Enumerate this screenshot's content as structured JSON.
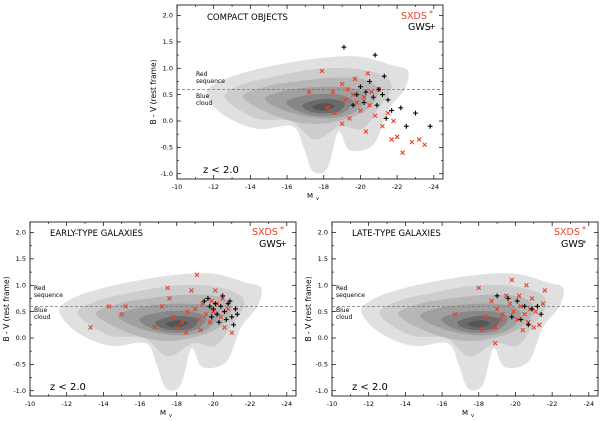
{
  "colors": {
    "sxds": "#e8402a",
    "gws": "#000000",
    "contour": [
      "#e0e0e0",
      "#cdcdcd",
      "#b7b7b7",
      "#a0a0a0",
      "#878787",
      "#6b6b6b",
      "#555555"
    ],
    "axis": "#000000"
  },
  "chart_data": [
    {
      "type": "scatter",
      "title": "COMPACT OBJECTS",
      "xlabel": "M",
      "xlabel_sub": "v",
      "ylabel": "B - V (rest frame)",
      "xlim": [
        -10,
        -24.5
      ],
      "ylim": [
        -1.1,
        2.2
      ],
      "xticks": [
        -10,
        -12,
        -14,
        -16,
        -18,
        -20,
        -22,
        -24
      ],
      "yticks": [
        -1.0,
        -0.5,
        0.0,
        0.5,
        1.0,
        1.5,
        2.0
      ],
      "xtick_labels": [
        "-10",
        "-12",
        "-14",
        "-16",
        "-18",
        "-20",
        "-22",
        "-24"
      ],
      "ytick_labels": [
        "-1.0",
        "-0.5",
        "0.0",
        "0.5",
        "1.0",
        "1.5",
        "2.0"
      ],
      "dashed_line_y": 0.6,
      "region_labels": {
        "red_line1": "Red",
        "red_line2": "sequence",
        "blue_line1": "Blue",
        "blue_line2": "cloud"
      },
      "redshift_label": "z < 2.0",
      "legend": [
        {
          "name": "SXDS",
          "marker": "*",
          "color": "#e8402a"
        },
        {
          "name": "GWS",
          "marker": "+",
          "color": "#000000"
        }
      ],
      "series": [
        {
          "name": "SXDS",
          "marker": "x",
          "points": [
            [
              -17.9,
              0.95
            ],
            [
              -18.5,
              0.55
            ],
            [
              -19.0,
              0.7
            ],
            [
              -19.3,
              0.6
            ],
            [
              -19.6,
              0.5
            ],
            [
              -19.8,
              0.35
            ],
            [
              -20.0,
              0.2
            ],
            [
              -20.2,
              0.45
            ],
            [
              -20.5,
              0.3
            ],
            [
              -20.8,
              0.1
            ],
            [
              -21.0,
              0.6
            ],
            [
              -21.2,
              -0.1
            ],
            [
              -21.5,
              0.15
            ],
            [
              -21.7,
              -0.35
            ],
            [
              -22.0,
              -0.3
            ],
            [
              -22.3,
              -0.6
            ],
            [
              -22.8,
              -0.4
            ],
            [
              -23.2,
              -0.35
            ],
            [
              -23.5,
              -0.45
            ],
            [
              -19.0,
              -0.05
            ],
            [
              -18.6,
              0.15
            ],
            [
              -19.4,
              0.05
            ],
            [
              -20.3,
              -0.2
            ],
            [
              -20.6,
              0.55
            ],
            [
              -19.7,
              0.8
            ],
            [
              -17.2,
              0.55
            ],
            [
              -18.2,
              0.25
            ],
            [
              -21.8,
              0.0
            ],
            [
              -20.4,
              0.9
            ],
            [
              -19.2,
              0.4
            ]
          ]
        },
        {
          "name": "GWS",
          "marker": "+",
          "points": [
            [
              -19.1,
              1.4
            ],
            [
              -20.8,
              1.25
            ],
            [
              -21.3,
              0.85
            ],
            [
              -20.5,
              0.75
            ],
            [
              -20.0,
              0.65
            ],
            [
              -19.8,
              0.5
            ],
            [
              -20.3,
              0.55
            ],
            [
              -20.7,
              0.45
            ],
            [
              -21.0,
              0.6
            ],
            [
              -21.5,
              0.4
            ],
            [
              -21.7,
              0.2
            ],
            [
              -22.2,
              0.25
            ],
            [
              -23.0,
              0.15
            ],
            [
              -22.5,
              -0.1
            ],
            [
              -23.8,
              -0.1
            ],
            [
              -20.2,
              0.35
            ],
            [
              -19.6,
              0.3
            ],
            [
              -20.9,
              0.3
            ],
            [
              -21.2,
              0.5
            ],
            [
              -21.4,
              0.05
            ]
          ]
        }
      ]
    },
    {
      "type": "scatter",
      "title": "EARLY-TYPE GALAXIES",
      "xlabel": "M",
      "xlabel_sub": "v",
      "ylabel": "B - V (rest frame)",
      "xlim": [
        -10,
        -24.5
      ],
      "ylim": [
        -1.1,
        2.2
      ],
      "xticks": [
        -10,
        -12,
        -14,
        -16,
        -18,
        -20,
        -22,
        -24
      ],
      "yticks": [
        -1.0,
        -0.5,
        0.0,
        0.5,
        1.0,
        1.5,
        2.0
      ],
      "xtick_labels": [
        "-10",
        "-12",
        "-14",
        "-16",
        "-18",
        "-20",
        "-22",
        "-24"
      ],
      "ytick_labels": [
        "-1.0",
        "-0.5",
        "0.0",
        "0.5",
        "1.0",
        "1.5",
        "2.0"
      ],
      "dashed_line_y": 0.6,
      "region_labels": {
        "red_line1": "Red",
        "red_line2": "sequence",
        "blue_line1": "Blue",
        "blue_line2": "cloud"
      },
      "redshift_label": "z < 2.0",
      "legend": [
        {
          "name": "SXDS",
          "marker": "*",
          "color": "#e8402a"
        },
        {
          "name": "GWS",
          "marker": "+",
          "color": "#000000"
        }
      ],
      "series": [
        {
          "name": "SXDS",
          "marker": "x",
          "points": [
            [
              -14.3,
              0.6
            ],
            [
              -15.2,
              0.6
            ],
            [
              -15.0,
              0.45
            ],
            [
              -16.8,
              0.2
            ],
            [
              -17.2,
              0.6
            ],
            [
              -17.6,
              0.75
            ],
            [
              -17.8,
              0.4
            ],
            [
              -18.0,
              0.2
            ],
            [
              -18.3,
              0.3
            ],
            [
              -18.6,
              0.5
            ],
            [
              -18.8,
              0.9
            ],
            [
              -19.0,
              0.55
            ],
            [
              -19.2,
              0.35
            ],
            [
              -19.4,
              0.65
            ],
            [
              -19.6,
              0.45
            ],
            [
              -19.8,
              0.3
            ],
            [
              -20.0,
              0.5
            ],
            [
              -20.2,
              0.65
            ],
            [
              -20.4,
              0.4
            ],
            [
              -20.6,
              0.2
            ],
            [
              -20.8,
              0.55
            ],
            [
              -21.0,
              0.1
            ],
            [
              -19.1,
              1.2
            ],
            [
              -20.1,
              0.9
            ],
            [
              -17.5,
              0.95
            ],
            [
              -13.3,
              0.2
            ],
            [
              -19.9,
              0.7
            ],
            [
              -18.5,
              0.1
            ],
            [
              -20.5,
              0.75
            ],
            [
              -19.3,
              0.15
            ]
          ]
        },
        {
          "name": "GWS",
          "marker": "+",
          "points": [
            [
              -19.5,
              0.7
            ],
            [
              -19.8,
              0.6
            ],
            [
              -20.0,
              0.55
            ],
            [
              -20.2,
              0.45
            ],
            [
              -20.4,
              0.6
            ],
            [
              -20.6,
              0.5
            ],
            [
              -20.8,
              0.65
            ],
            [
              -21.0,
              0.4
            ],
            [
              -21.2,
              0.55
            ],
            [
              -20.3,
              0.3
            ],
            [
              -19.7,
              0.75
            ],
            [
              -20.7,
              0.35
            ],
            [
              -20.9,
              0.7
            ],
            [
              -21.1,
              0.25
            ],
            [
              -20.5,
              0.8
            ],
            [
              -20.1,
              0.65
            ],
            [
              -19.9,
              0.4
            ],
            [
              -21.3,
              0.45
            ]
          ]
        }
      ]
    },
    {
      "type": "scatter",
      "title": "LATE-TYPE GALAXIES",
      "xlabel": "M",
      "xlabel_sub": "v",
      "ylabel": "B - V (rest frame)",
      "xlim": [
        -10,
        -24.5
      ],
      "ylim": [
        -1.1,
        2.2
      ],
      "xticks": [
        -10,
        -12,
        -14,
        -16,
        -18,
        -20,
        -22,
        -24
      ],
      "yticks": [
        -1.0,
        -0.5,
        0.0,
        0.5,
        1.0,
        1.5,
        2.0
      ],
      "xtick_labels": [
        "-10",
        "-12",
        "-14",
        "-16",
        "-18",
        "-20",
        "-22",
        "-24"
      ],
      "ytick_labels": [
        "-1.0",
        "-0.5",
        "0.0",
        "0.5",
        "1.0",
        "1.5",
        "2.0"
      ],
      "dashed_line_y": 0.6,
      "region_labels": {
        "red_line1": "Red",
        "red_line2": "sequence",
        "blue_line1": "Blue",
        "blue_line2": "cloud"
      },
      "redshift_label": "z < 2.0",
      "legend": [
        {
          "name": "SXDS",
          "marker": "*",
          "color": "#e8402a"
        },
        {
          "name": "GWS",
          "marker": "*",
          "color": "#000000"
        }
      ],
      "series": [
        {
          "name": "SXDS",
          "marker": "x",
          "points": [
            [
              -18.0,
              0.95
            ],
            [
              -18.7,
              0.7
            ],
            [
              -19.0,
              0.55
            ],
            [
              -19.3,
              0.45
            ],
            [
              -19.5,
              0.8
            ],
            [
              -19.7,
              0.65
            ],
            [
              -19.9,
              0.5
            ],
            [
              -20.1,
              0.35
            ],
            [
              -20.3,
              0.6
            ],
            [
              -20.5,
              0.45
            ],
            [
              -20.7,
              0.3
            ],
            [
              -20.9,
              0.75
            ],
            [
              -21.1,
              0.5
            ],
            [
              -21.3,
              0.25
            ],
            [
              -19.8,
              1.1
            ],
            [
              -20.6,
              1.0
            ],
            [
              -18.4,
              0.4
            ],
            [
              -18.9,
              0.2
            ],
            [
              -20.4,
              0.15
            ],
            [
              -21.5,
              0.65
            ],
            [
              -18.9,
              -0.1
            ],
            [
              -16.7,
              0.45
            ],
            [
              -21.6,
              0.9
            ],
            [
              -20.8,
              0.55
            ],
            [
              -19.2,
              0.35
            ],
            [
              -20.2,
              0.8
            ],
            [
              -18.2,
              0.15
            ],
            [
              -21.0,
              0.2
            ]
          ]
        },
        {
          "name": "GWS",
          "marker": "+",
          "points": [
            [
              -19.0,
              0.8
            ],
            [
              -19.6,
              0.75
            ],
            [
              -20.1,
              0.7
            ],
            [
              -20.5,
              0.6
            ],
            [
              -20.9,
              0.55
            ],
            [
              -21.2,
              0.6
            ],
            [
              -21.4,
              0.45
            ],
            [
              -19.8,
              0.4
            ],
            [
              -20.3,
              0.35
            ],
            [
              -20.7,
              0.25
            ]
          ]
        }
      ]
    }
  ]
}
